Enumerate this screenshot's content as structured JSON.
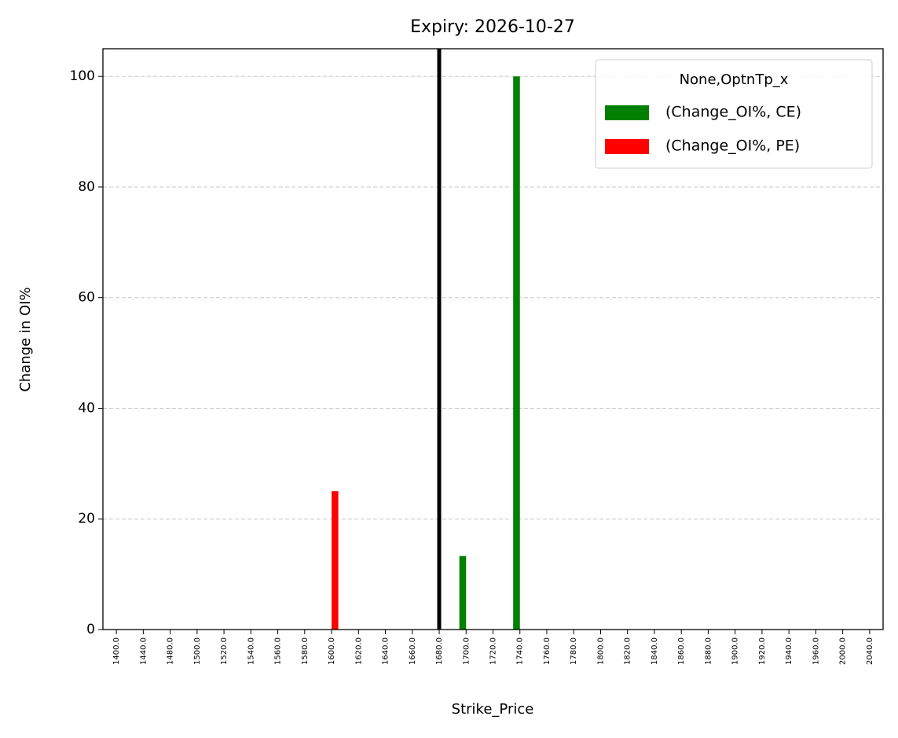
{
  "chart_data": {
    "type": "bar",
    "title": "Expiry: 2026-10-27",
    "x_label": "Strike_Price",
    "y_label": "Change in OI%",
    "categories": [
      "1400.0",
      "1440.0",
      "1480.0",
      "1500.0",
      "1520.0",
      "1540.0",
      "1560.0",
      "1580.0",
      "1600.0",
      "1620.0",
      "1640.0",
      "1660.0",
      "1680.0",
      "1700.0",
      "1720.0",
      "1740.0",
      "1760.0",
      "1780.0",
      "1800.0",
      "1820.0",
      "1840.0",
      "1860.0",
      "1880.0",
      "1900.0",
      "1920.0",
      "1940.0",
      "1960.0",
      "2000.0",
      "2040.0"
    ],
    "series": [
      {
        "name": "(Change_OI%, CE)",
        "color": "#008000",
        "values": [
          null,
          null,
          null,
          null,
          null,
          null,
          null,
          null,
          null,
          null,
          null,
          null,
          null,
          13.3,
          null,
          100,
          null,
          null,
          null,
          null,
          null,
          null,
          null,
          null,
          null,
          null,
          null,
          null,
          null
        ]
      },
      {
        "name": "(Change_OI%, PE)",
        "color": "#ff0000",
        "values": [
          null,
          null,
          null,
          null,
          null,
          null,
          null,
          null,
          25,
          null,
          null,
          null,
          null,
          null,
          null,
          null,
          null,
          null,
          null,
          null,
          null,
          null,
          null,
          null,
          null,
          null,
          null,
          null,
          null
        ]
      }
    ],
    "legend_title": "None,OptnTp_x",
    "legend_position": "upper right",
    "vline": 1680,
    "vline_color": "#000000",
    "ylim": [
      0,
      105
    ],
    "yticks": [
      0,
      20,
      40,
      60,
      80,
      100
    ],
    "grid": true
  }
}
